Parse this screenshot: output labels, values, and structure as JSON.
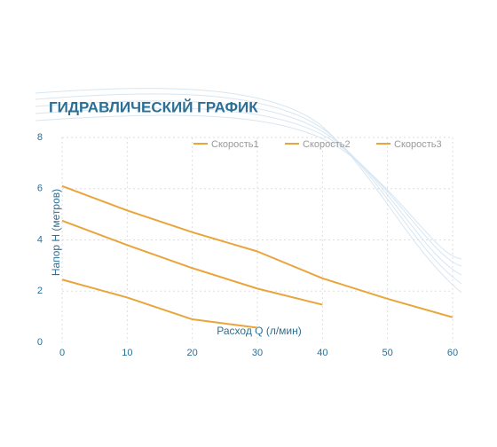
{
  "chart_data": {
    "type": "line",
    "title": "ГИДРАВЛИЧЕСКИЙ ГРАФИК",
    "x_label": "Расход Q (л/мин)",
    "y_label": "Напор Н (метров)",
    "xlim": [
      0,
      60
    ],
    "xticks": [
      0,
      10,
      20,
      30,
      40,
      50,
      60
    ],
    "ylim": [
      0,
      8
    ],
    "yticks": [
      0,
      2,
      4,
      6,
      8
    ],
    "grid": true,
    "legend": "top-right",
    "series": [
      {
        "name": "Скорость1",
        "color": "#e9a53c",
        "x": [
          0,
          10,
          20,
          30
        ],
        "values": [
          2.45,
          1.75,
          0.9,
          0.57
        ]
      },
      {
        "name": "Скорость2",
        "color": "#e9a53c",
        "x": [
          0,
          10,
          20,
          30,
          40
        ],
        "values": [
          4.75,
          3.8,
          2.9,
          2.1,
          1.47
        ]
      },
      {
        "name": "Скорость3",
        "color": "#e9a53c",
        "x": [
          0,
          10,
          20,
          30,
          40,
          50,
          60
        ],
        "values": [
          6.1,
          5.15,
          4.3,
          3.55,
          2.5,
          1.7,
          0.98
        ]
      }
    ]
  }
}
